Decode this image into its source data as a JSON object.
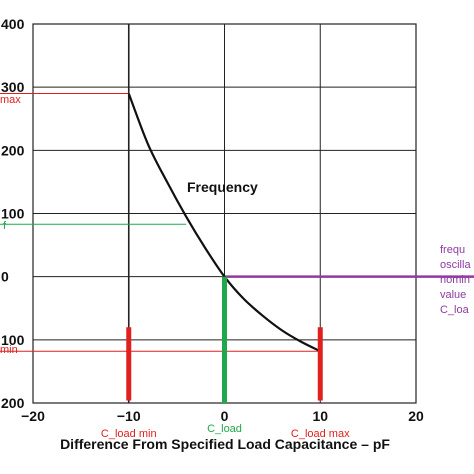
{
  "chart_data": {
    "type": "line",
    "xlabel": "Difference From Specified Load Capacitance – pF",
    "xlim": [
      -20,
      20
    ],
    "ylim": [
      -200,
      400
    ],
    "x_ticks": [
      -20,
      -10,
      0,
      10,
      20
    ],
    "x_tick_labels": [
      "−20",
      "−10",
      "0",
      "10",
      "20"
    ],
    "y_ticks": [
      400,
      300,
      200,
      100,
      0,
      -100,
      -200
    ],
    "y_tick_labels": [
      "400",
      "300",
      "200",
      "100",
      "0",
      "100",
      "200"
    ],
    "grid": true,
    "series": [
      {
        "name": "Frequency",
        "x": [
          -10,
          -8,
          -6,
          -4,
          -2,
          0,
          2,
          4,
          6,
          8,
          10
        ],
        "y": [
          290,
          210,
          150,
          95,
          45,
          0,
          -35,
          -62,
          -85,
          -103,
          -118
        ]
      }
    ],
    "annotations": {
      "curve_label": "Frequency",
      "y_left_labels": [
        {
          "text": "max",
          "y": 290,
          "color": "#e0201e"
        },
        {
          "text": "f",
          "y": 83,
          "color": "#1fa84a"
        },
        {
          "text": "min",
          "y": -118,
          "color": "#e0201e"
        }
      ],
      "x_bottom_labels": [
        {
          "text": "C_load min",
          "x": -10,
          "color": "#e0201e"
        },
        {
          "text": "C_load",
          "x": 0,
          "color": "#1fa84a"
        },
        {
          "text": "C_load max",
          "x": 10,
          "color": "#e0201e"
        }
      ],
      "right_note_lines": [
        "frequ",
        "oscilla",
        "nomin",
        "value",
        "C_loa"
      ],
      "right_note_color": "#8f3aa3",
      "reference_lines": {
        "max_y": 290,
        "min_y": -118,
        "f_y": 83,
        "f_x_end": -4,
        "nominal_y": 0
      }
    },
    "colors": {
      "curve": "#111111",
      "red": "#e0201e",
      "green": "#1fa84a",
      "purple": "#8f3aa3",
      "grid": "#222222"
    }
  }
}
